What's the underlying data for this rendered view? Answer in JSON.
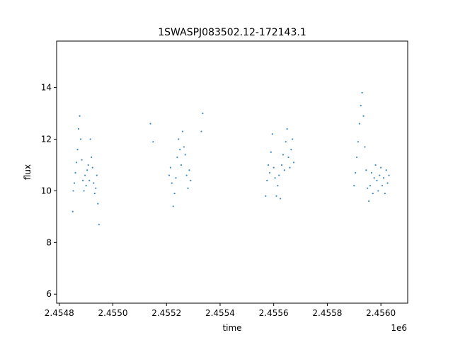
{
  "chart_data": {
    "type": "scatter",
    "title": "1SWASPJ083502.12-172143.1",
    "xlabel": "time",
    "ylabel": "flux",
    "x_offset_label": "1e6",
    "xlim": [
      2454790,
      2456100
    ],
    "ylim": [
      5.65,
      15.8
    ],
    "x_ticks": [
      2454800,
      2455000,
      2455200,
      2455400,
      2455600,
      2455800,
      2456000
    ],
    "x_tick_labels": [
      "2.4548",
      "2.4550",
      "2.4552",
      "2.4554",
      "2.4556",
      "2.4558",
      "2.4560"
    ],
    "y_ticks": [
      6,
      8,
      10,
      12,
      14
    ],
    "y_tick_labels": [
      "6",
      "8",
      "10",
      "12",
      "14"
    ],
    "grid": false,
    "marker_color": "#1f77b4",
    "series": [
      {
        "points": [
          [
            2454850,
            9.2
          ],
          [
            2454852,
            10.0
          ],
          [
            2454856,
            10.3
          ],
          [
            2454860,
            10.7
          ],
          [
            2454864,
            11.1
          ],
          [
            2454868,
            11.6
          ],
          [
            2454872,
            12.4
          ],
          [
            2454876,
            12.9
          ],
          [
            2454880,
            12.0
          ],
          [
            2454884,
            11.2
          ],
          [
            2454888,
            10.4
          ],
          [
            2454892,
            10.0
          ],
          [
            2454896,
            10.6
          ],
          [
            2454900,
            10.2
          ],
          [
            2454904,
            10.8
          ],
          [
            2454908,
            11.0
          ],
          [
            2454912,
            10.4
          ],
          [
            2454916,
            12.0
          ],
          [
            2454920,
            11.3
          ],
          [
            2454924,
            10.9
          ],
          [
            2454928,
            10.3
          ],
          [
            2454932,
            9.9
          ],
          [
            2454936,
            10.1
          ],
          [
            2454940,
            10.6
          ],
          [
            2454944,
            9.5
          ],
          [
            2454948,
            8.7
          ],
          [
            2455140,
            12.6
          ],
          [
            2455150,
            11.9
          ],
          [
            2455210,
            10.6
          ],
          [
            2455215,
            10.9
          ],
          [
            2455220,
            10.3
          ],
          [
            2455225,
            9.4
          ],
          [
            2455230,
            9.9
          ],
          [
            2455235,
            10.5
          ],
          [
            2455240,
            11.3
          ],
          [
            2455245,
            12.0
          ],
          [
            2455250,
            11.6
          ],
          [
            2455255,
            11.0
          ],
          [
            2455260,
            12.3
          ],
          [
            2455265,
            11.7
          ],
          [
            2455270,
            11.4
          ],
          [
            2455275,
            10.6
          ],
          [
            2455280,
            10.1
          ],
          [
            2455285,
            10.8
          ],
          [
            2455290,
            10.4
          ],
          [
            2455330,
            12.3
          ],
          [
            2455335,
            13.0
          ],
          [
            2455570,
            9.8
          ],
          [
            2455575,
            10.4
          ],
          [
            2455580,
            11.0
          ],
          [
            2455585,
            10.7
          ],
          [
            2455590,
            11.5
          ],
          [
            2455595,
            12.2
          ],
          [
            2455600,
            10.9
          ],
          [
            2455605,
            10.5
          ],
          [
            2455610,
            9.8
          ],
          [
            2455615,
            10.2
          ],
          [
            2455620,
            10.6
          ],
          [
            2455625,
            9.7
          ],
          [
            2455630,
            11.0
          ],
          [
            2455635,
            11.4
          ],
          [
            2455640,
            10.8
          ],
          [
            2455645,
            11.9
          ],
          [
            2455650,
            12.4
          ],
          [
            2455655,
            11.3
          ],
          [
            2455660,
            10.9
          ],
          [
            2455665,
            11.6
          ],
          [
            2455670,
            12.0
          ],
          [
            2455675,
            11.1
          ],
          [
            2455900,
            10.2
          ],
          [
            2455905,
            10.7
          ],
          [
            2455910,
            11.3
          ],
          [
            2455915,
            11.9
          ],
          [
            2455920,
            12.6
          ],
          [
            2455925,
            13.3
          ],
          [
            2455930,
            13.8
          ],
          [
            2455935,
            12.9
          ],
          [
            2455940,
            11.7
          ],
          [
            2455945,
            10.8
          ],
          [
            2455950,
            10.1
          ],
          [
            2455955,
            9.6
          ],
          [
            2455960,
            10.2
          ],
          [
            2455965,
            10.7
          ],
          [
            2455970,
            9.9
          ],
          [
            2455975,
            10.5
          ],
          [
            2455980,
            11.0
          ],
          [
            2455985,
            10.4
          ],
          [
            2455990,
            10.0
          ],
          [
            2455995,
            10.6
          ],
          [
            2456000,
            10.9
          ],
          [
            2456005,
            10.2
          ],
          [
            2456010,
            10.5
          ],
          [
            2456015,
            9.9
          ],
          [
            2456020,
            10.8
          ],
          [
            2456025,
            10.3
          ],
          [
            2456030,
            10.6
          ]
        ]
      }
    ]
  }
}
